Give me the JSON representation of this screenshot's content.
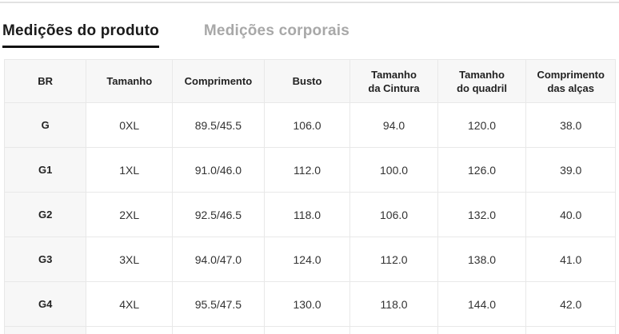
{
  "tabs": [
    {
      "label": "Medições do produto",
      "active": true
    },
    {
      "label": "Medições corporais",
      "active": false
    }
  ],
  "size_table": {
    "columns": [
      "BR",
      "Tamanho",
      "Comprimento",
      "Busto",
      "Tamanho\nda Cintura",
      "Tamanho\ndo quadril",
      "Comprimento\ndas alças"
    ],
    "rows": [
      [
        "G",
        "0XL",
        "89.5/45.5",
        "106.0",
        "94.0",
        "120.0",
        "38.0"
      ],
      [
        "G1",
        "1XL",
        "91.0/46.0",
        "112.0",
        "100.0",
        "126.0",
        "39.0"
      ],
      [
        "G2",
        "2XL",
        "92.5/46.5",
        "118.0",
        "106.0",
        "132.0",
        "40.0"
      ],
      [
        "G3",
        "3XL",
        "94.0/47.0",
        "124.0",
        "112.0",
        "138.0",
        "41.0"
      ],
      [
        "G4",
        "4XL",
        "95.5/47.5",
        "130.0",
        "118.0",
        "144.0",
        "42.0"
      ]
    ]
  },
  "colors": {
    "active_tab": "#1a1a1a",
    "inactive_tab": "#a8a8a8",
    "tab_underline": "#111111",
    "table_border": "#e8e8e8",
    "header_bg": "#f7f7f7",
    "row_header_bg": "#f7f7f7",
    "cell_text": "#333333",
    "top_divider": "#e2e2e2"
  }
}
